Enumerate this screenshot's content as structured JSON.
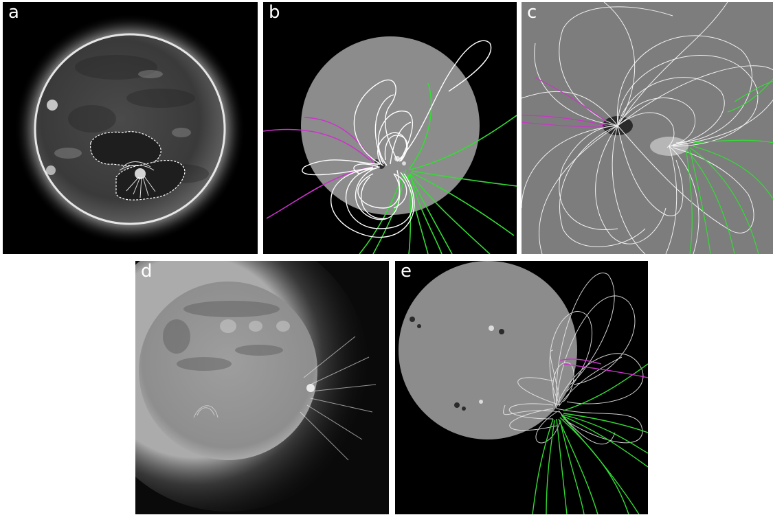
{
  "panels": {
    "a": {
      "label": "a",
      "kind": "euv-disk"
    },
    "b": {
      "label": "b",
      "kind": "magnetogram-field-lines"
    },
    "c": {
      "label": "c",
      "kind": "magnetogram-field-lines-zoom"
    },
    "d": {
      "label": "d",
      "kind": "euv-disk-corona"
    },
    "e": {
      "label": "e",
      "kind": "magnetogram-field-lines-limb"
    }
  },
  "colors": {
    "background_panel": "#000000",
    "magnetogram_gray": "#8c8c8c",
    "closed_field_lines": "#ffffff",
    "open_field_positive": "#33dd33",
    "open_field_negative": "#cc33cc",
    "region_contour": "#ffffff"
  }
}
